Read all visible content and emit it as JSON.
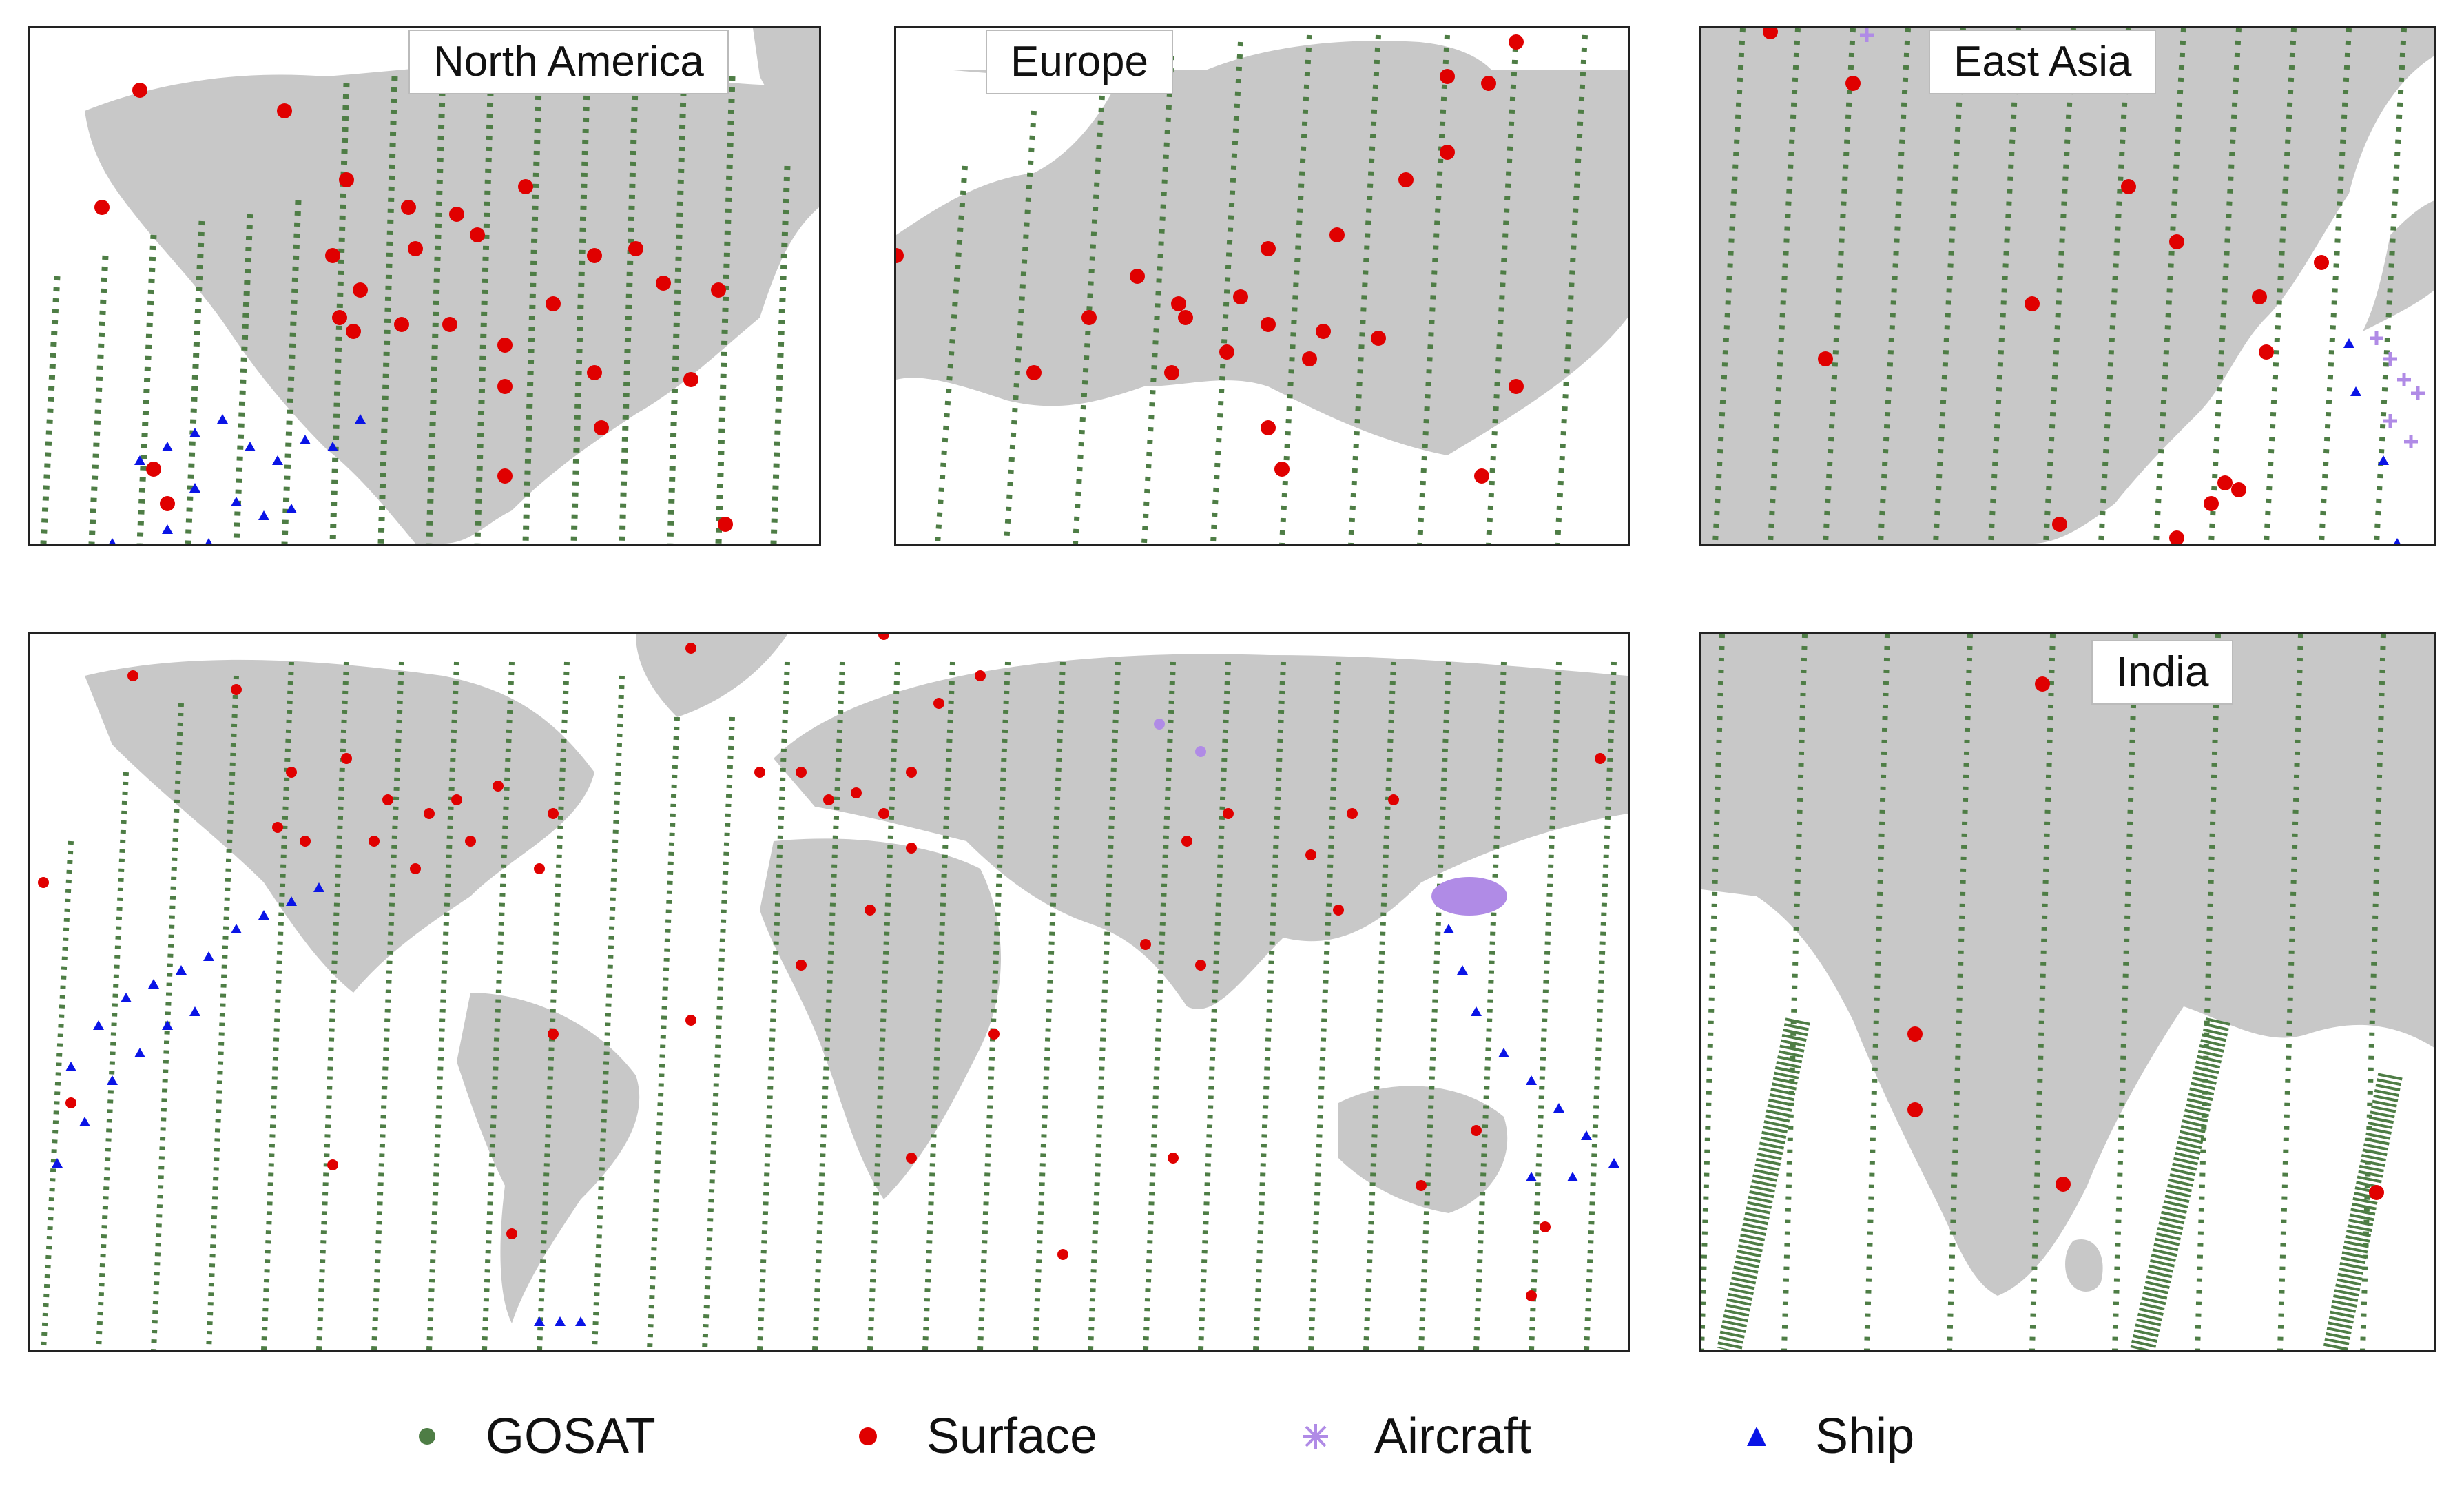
{
  "colors": {
    "land": "#c8c8c8",
    "ocean": "#ffffff",
    "gosat": "#4e7d45",
    "surface": "#e00000",
    "aircraft": "#b08be6",
    "ship": "#0a14e6",
    "frame": "#222222"
  },
  "panels": {
    "north_america": {
      "label": "North America"
    },
    "europe": {
      "label": "Europe"
    },
    "east_asia": {
      "label": "East Asia"
    },
    "india": {
      "label": "India"
    },
    "global": {
      "label": ""
    }
  },
  "legend": {
    "items": [
      {
        "label": "GOSAT",
        "marker": "dot-icon"
      },
      {
        "label": "Surface",
        "marker": "dot-icon"
      },
      {
        "label": "Aircraft",
        "marker": "asterisk-icon"
      },
      {
        "label": "Ship",
        "marker": "triangle-icon"
      }
    ]
  }
}
